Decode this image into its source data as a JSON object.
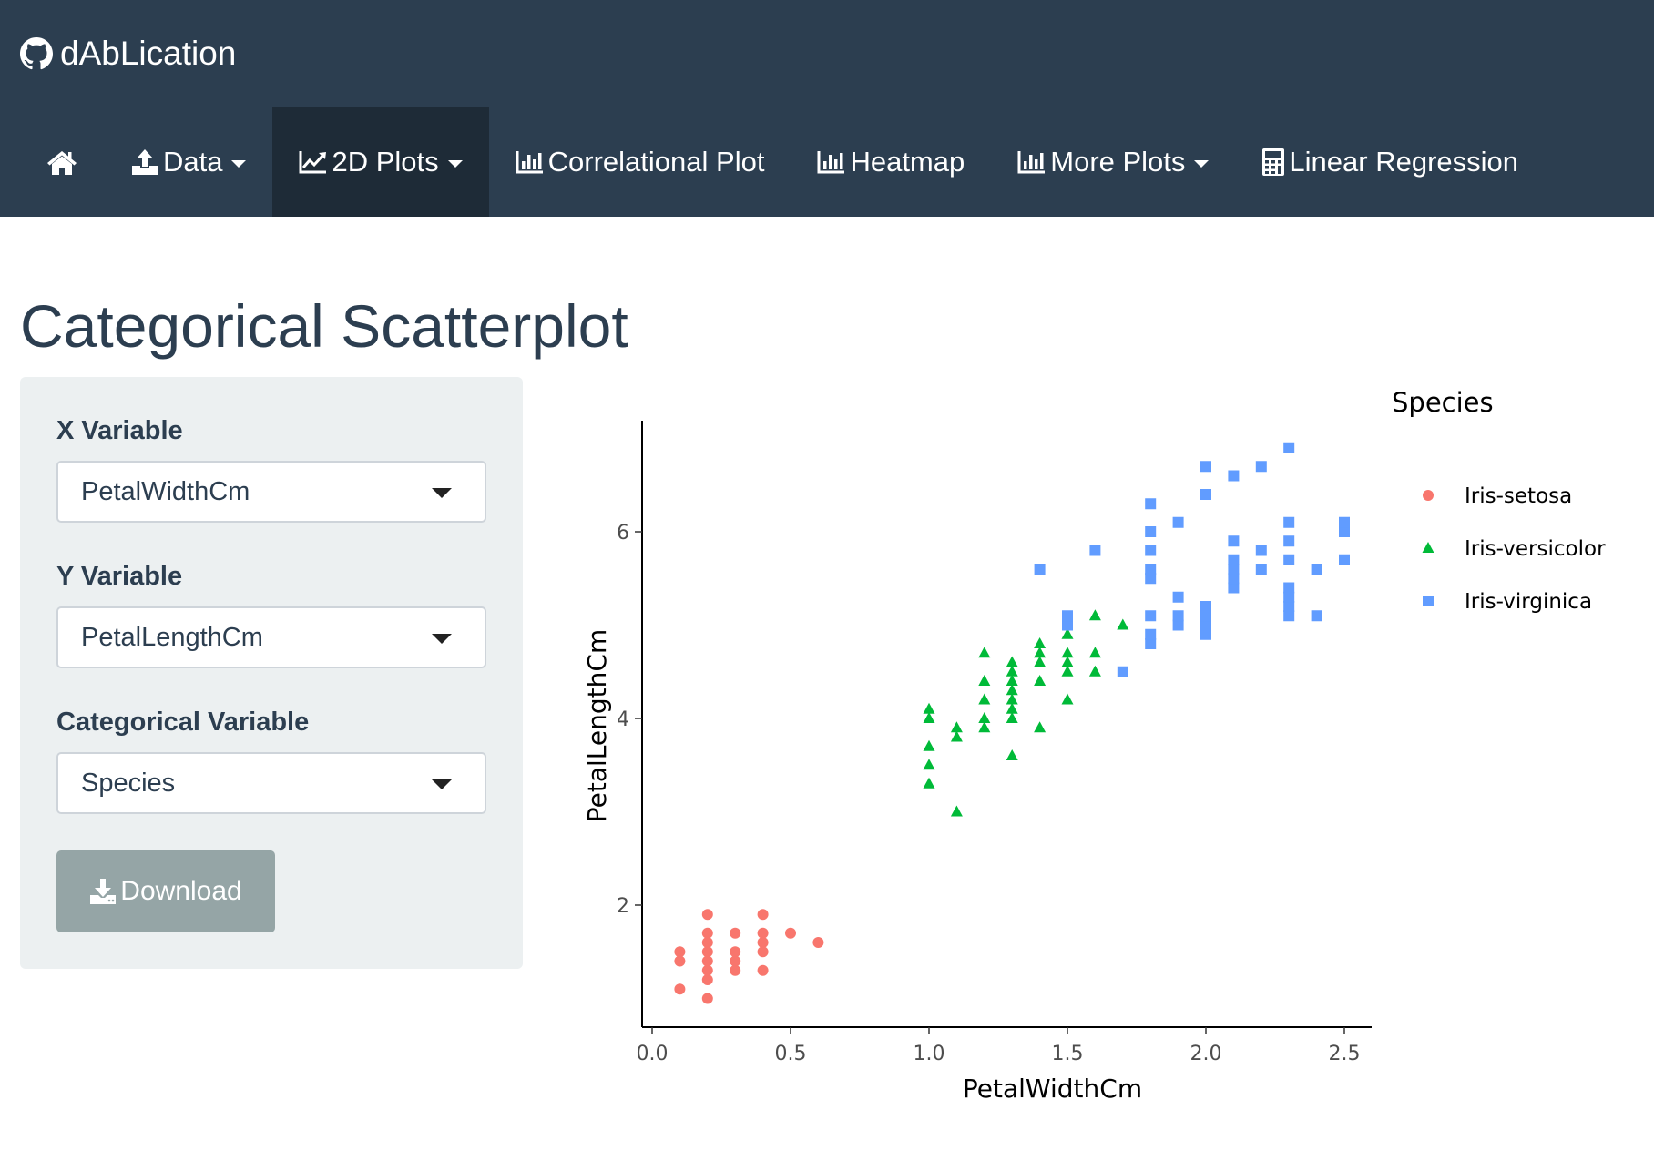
{
  "brand": {
    "name": "dAbLication",
    "icon": "github-icon"
  },
  "nav": {
    "items": [
      {
        "label": "",
        "icon": "home-icon"
      },
      {
        "label": "Data",
        "icon": "upload-icon",
        "dropdown": true
      },
      {
        "label": "2D Plots",
        "icon": "line-chart-icon",
        "dropdown": true,
        "active": true
      },
      {
        "label": "Correlational Plot",
        "icon": "bar-chart-icon"
      },
      {
        "label": "Heatmap",
        "icon": "bar-chart-icon"
      },
      {
        "label": "More Plots",
        "icon": "bar-chart-icon",
        "dropdown": true
      },
      {
        "label": "Linear Regression",
        "icon": "calculator-icon"
      }
    ]
  },
  "page": {
    "title": "Categorical Scatterplot"
  },
  "controls": {
    "x_label": "X Variable",
    "x_value": "PetalWidthCm",
    "y_label": "Y Variable",
    "y_value": "PetalLengthCm",
    "cat_label": "Categorical Variable",
    "cat_value": "Species",
    "download_label": "Download"
  },
  "colors": {
    "navbar": "#2c3e50",
    "active_nav": "#1e2b37",
    "well": "#ecf0f1",
    "button": "#95a5a6"
  },
  "chart_data": {
    "type": "scatter",
    "xlabel": "PetalWidthCm",
    "ylabel": "PetalLengthCm",
    "xlim": [
      0.0,
      2.5
    ],
    "ylim": [
      1.0,
      6.9
    ],
    "xticks": [
      "0.0",
      "0.5",
      "1.0",
      "1.5",
      "2.0",
      "2.5"
    ],
    "yticks": [
      "2",
      "4",
      "6"
    ],
    "grid": false,
    "legend_title": "Species",
    "legend_position": "right",
    "series": [
      {
        "name": "Iris-setosa",
        "color": "#f8766d",
        "marker": "circle",
        "points": [
          [
            0.1,
            1.1
          ],
          [
            0.1,
            1.4
          ],
          [
            0.1,
            1.5
          ],
          [
            0.2,
            1.0
          ],
          [
            0.2,
            1.2
          ],
          [
            0.2,
            1.3
          ],
          [
            0.2,
            1.4
          ],
          [
            0.2,
            1.5
          ],
          [
            0.2,
            1.6
          ],
          [
            0.2,
            1.7
          ],
          [
            0.2,
            1.9
          ],
          [
            0.3,
            1.3
          ],
          [
            0.3,
            1.4
          ],
          [
            0.3,
            1.5
          ],
          [
            0.3,
            1.7
          ],
          [
            0.4,
            1.3
          ],
          [
            0.4,
            1.5
          ],
          [
            0.4,
            1.6
          ],
          [
            0.4,
            1.7
          ],
          [
            0.4,
            1.9
          ],
          [
            0.5,
            1.7
          ],
          [
            0.6,
            1.6
          ]
        ]
      },
      {
        "name": "Iris-versicolor",
        "color": "#00ba38",
        "marker": "triangle",
        "points": [
          [
            1.0,
            3.3
          ],
          [
            1.0,
            3.5
          ],
          [
            1.0,
            3.7
          ],
          [
            1.0,
            4.0
          ],
          [
            1.0,
            4.1
          ],
          [
            1.1,
            3.0
          ],
          [
            1.1,
            3.8
          ],
          [
            1.1,
            3.9
          ],
          [
            1.2,
            3.9
          ],
          [
            1.2,
            4.0
          ],
          [
            1.2,
            4.2
          ],
          [
            1.2,
            4.4
          ],
          [
            1.2,
            4.7
          ],
          [
            1.3,
            3.6
          ],
          [
            1.3,
            4.0
          ],
          [
            1.3,
            4.1
          ],
          [
            1.3,
            4.2
          ],
          [
            1.3,
            4.3
          ],
          [
            1.3,
            4.4
          ],
          [
            1.3,
            4.5
          ],
          [
            1.3,
            4.6
          ],
          [
            1.4,
            3.9
          ],
          [
            1.4,
            4.4
          ],
          [
            1.4,
            4.6
          ],
          [
            1.4,
            4.7
          ],
          [
            1.4,
            4.8
          ],
          [
            1.5,
            4.2
          ],
          [
            1.5,
            4.5
          ],
          [
            1.5,
            4.6
          ],
          [
            1.5,
            4.7
          ],
          [
            1.5,
            4.9
          ],
          [
            1.6,
            4.5
          ],
          [
            1.6,
            4.7
          ],
          [
            1.6,
            5.1
          ],
          [
            1.7,
            5.0
          ]
        ]
      },
      {
        "name": "Iris-virginica",
        "color": "#619cff",
        "marker": "square",
        "points": [
          [
            1.4,
            5.6
          ],
          [
            1.5,
            5.0
          ],
          [
            1.5,
            5.1
          ],
          [
            1.6,
            5.8
          ],
          [
            1.7,
            4.5
          ],
          [
            1.8,
            4.8
          ],
          [
            1.8,
            4.9
          ],
          [
            1.8,
            5.1
          ],
          [
            1.8,
            5.5
          ],
          [
            1.8,
            5.6
          ],
          [
            1.8,
            5.8
          ],
          [
            1.8,
            6.0
          ],
          [
            1.8,
            6.3
          ],
          [
            1.9,
            5.0
          ],
          [
            1.9,
            5.1
          ],
          [
            1.9,
            5.3
          ],
          [
            1.9,
            6.1
          ],
          [
            2.0,
            4.9
          ],
          [
            2.0,
            5.0
          ],
          [
            2.0,
            5.1
          ],
          [
            2.0,
            5.2
          ],
          [
            2.0,
            6.4
          ],
          [
            2.0,
            6.7
          ],
          [
            2.1,
            5.4
          ],
          [
            2.1,
            5.5
          ],
          [
            2.1,
            5.6
          ],
          [
            2.1,
            5.7
          ],
          [
            2.1,
            5.9
          ],
          [
            2.1,
            6.6
          ],
          [
            2.2,
            5.6
          ],
          [
            2.2,
            5.8
          ],
          [
            2.2,
            6.7
          ],
          [
            2.3,
            5.1
          ],
          [
            2.3,
            5.2
          ],
          [
            2.3,
            5.3
          ],
          [
            2.3,
            5.4
          ],
          [
            2.3,
            5.7
          ],
          [
            2.3,
            5.9
          ],
          [
            2.3,
            6.1
          ],
          [
            2.3,
            6.9
          ],
          [
            2.4,
            5.1
          ],
          [
            2.4,
            5.6
          ],
          [
            2.5,
            5.7
          ],
          [
            2.5,
            6.0
          ],
          [
            2.5,
            6.1
          ]
        ]
      }
    ]
  }
}
